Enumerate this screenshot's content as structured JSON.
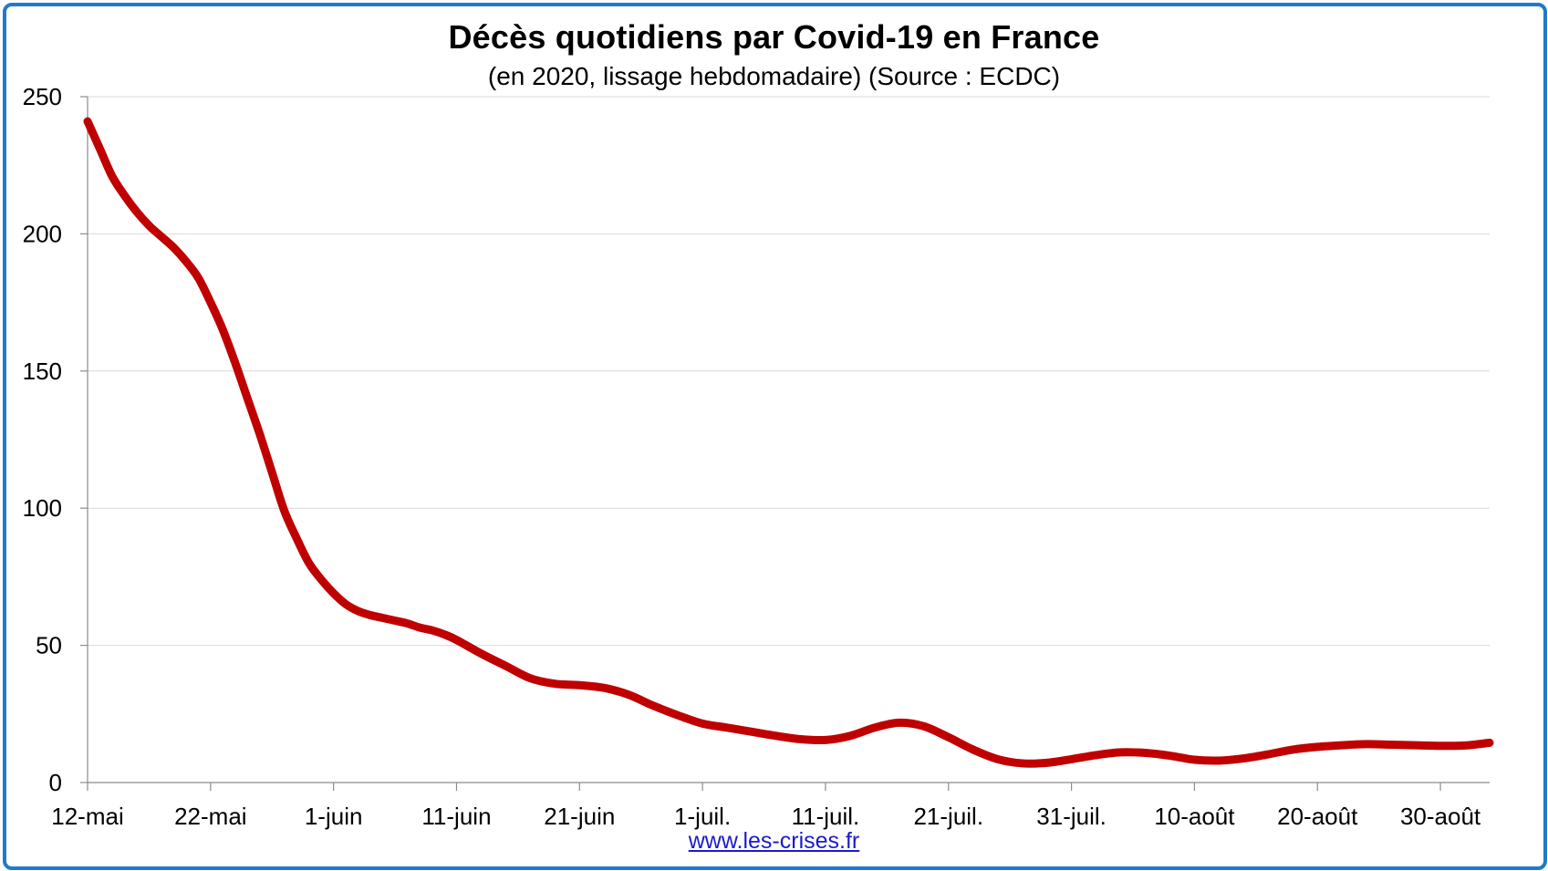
{
  "chart_data": {
    "type": "line",
    "title": "Décès quotidiens par Covid-19 en France",
    "subtitle": "(en 2020, lissage hebdomadaire) (Source : ECDC)",
    "xlabel": "",
    "ylabel": "",
    "ylim": [
      0,
      250
    ],
    "yticks": [
      "0",
      "50",
      "100",
      "150",
      "200",
      "250"
    ],
    "yticks_values": [
      0,
      50,
      100,
      150,
      200,
      250
    ],
    "xlim_days": [
      0,
      114
    ],
    "xticks": [
      "12-mai",
      "22-mai",
      "1-juin",
      "11-juin",
      "21-juin",
      "1-juil.",
      "11-juil.",
      "21-juil.",
      "31-juil.",
      "10-août",
      "20-août",
      "30-août"
    ],
    "xticks_days": [
      0,
      10,
      20,
      30,
      40,
      50,
      60,
      70,
      80,
      90,
      100,
      110
    ],
    "grid": true,
    "series": [
      {
        "color": "#c00000",
        "x": [
          0,
          1,
          2,
          3,
          4,
          5,
          6,
          7,
          8,
          9,
          10,
          11,
          12,
          13,
          14,
          15,
          16,
          17,
          18,
          19,
          20,
          21,
          22,
          23,
          24,
          25,
          26,
          27,
          28,
          29,
          30,
          32,
          34,
          36,
          38,
          40,
          42,
          44,
          46,
          48,
          50,
          52,
          54,
          56,
          58,
          60,
          62,
          64,
          66,
          68,
          70,
          72,
          74,
          76,
          78,
          80,
          82,
          84,
          86,
          88,
          90,
          92,
          94,
          96,
          98,
          100,
          102,
          104,
          106,
          108,
          110,
          112,
          114
        ],
        "y": [
          241,
          231,
          221,
          214,
          208,
          203,
          199,
          195,
          190,
          184,
          175,
          165,
          153,
          140,
          127,
          113,
          99,
          89,
          80,
          74,
          69,
          65,
          62.5,
          61,
          60,
          59,
          58,
          56.5,
          55.5,
          54,
          52,
          47,
          42.5,
          38,
          36,
          35.5,
          34.5,
          32,
          28,
          24.5,
          21.5,
          20,
          18.5,
          17,
          15.8,
          15.5,
          17,
          20,
          21.8,
          20.5,
          16.5,
          12,
          8.5,
          7,
          7.2,
          8.5,
          10,
          11,
          10.8,
          9.8,
          8.3,
          8,
          8.8,
          10.3,
          12,
          13,
          13.6,
          14,
          13.8,
          13.6,
          13.4,
          13.5,
          14.5
        ]
      }
    ]
  },
  "credit_text": "www.les-crises.fr",
  "colors": {
    "frame": "#1f7ac8",
    "line": "#c00000",
    "grid": "#d9d9d9",
    "axis": "#8c8c8c",
    "link": "#1a1ad0"
  }
}
